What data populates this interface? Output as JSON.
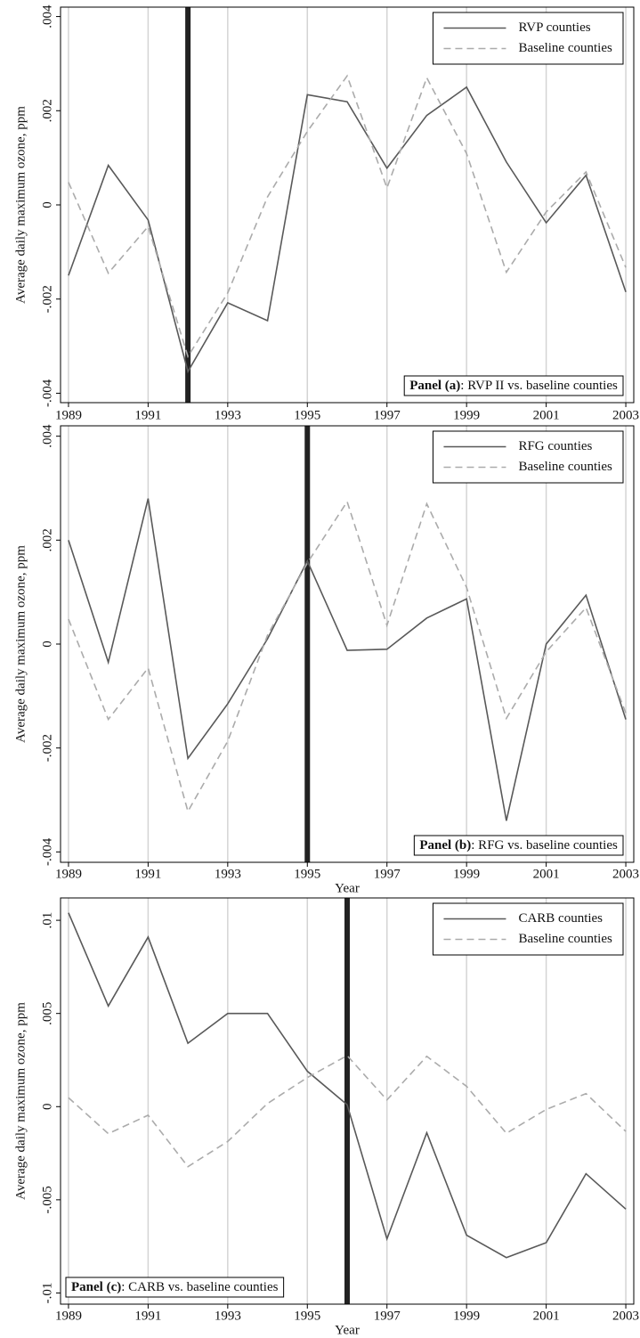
{
  "chart_data": [
    {
      "type": "line",
      "x_label": "Year",
      "y_label": "Average daily maximum ozone, ppm",
      "x": [
        1989,
        1990,
        1991,
        1992,
        1993,
        1994,
        1995,
        1996,
        1997,
        1998,
        1999,
        2000,
        2001,
        2002,
        2003
      ],
      "xlim": [
        1988.8,
        2003.2
      ],
      "xticks": [
        1989,
        1991,
        1993,
        1995,
        1997,
        1999,
        2001,
        2003
      ],
      "ylim": [
        -0.0042,
        0.0042
      ],
      "yticks": [
        {
          "value": -0.004,
          "label": "-.004"
        },
        {
          "value": -0.002,
          "label": "-.002"
        },
        0,
        {
          "value": 0.002,
          "label": ".002"
        },
        {
          "value": 0.004,
          "label": ".004"
        }
      ],
      "grid": true,
      "legend": "upper right",
      "panel_corner": "lower right",
      "policy_year": 1992,
      "policy_color": "#222222",
      "panel_label": "Panel (a)",
      "panel_caption": ": RVP II vs. baseline counties",
      "series": [
        {
          "name": "RVP counties",
          "color": "#595959",
          "style": "solid",
          "values": [
            -0.0015,
            0.00084,
            -0.00032,
            -0.00354,
            -0.00208,
            -0.00246,
            0.00234,
            0.00219,
            0.00078,
            0.0019,
            0.0025,
            0.00091,
            -0.00038,
            0.00063,
            -0.00185
          ]
        },
        {
          "name": "Baseline counties",
          "color": "#ababab",
          "style": "dashed",
          "values": [
            0.00048,
            -0.00145,
            -0.00046,
            -0.00322,
            -0.00187,
            0.00017,
            0.00156,
            0.00274,
            0.00036,
            0.0027,
            0.00109,
            -0.00143,
            -0.00015,
            0.0007,
            -0.00133
          ]
        }
      ]
    },
    {
      "type": "line",
      "x_label": "Year",
      "y_label": "Average daily maximum ozone, ppm",
      "x": [
        1989,
        1990,
        1991,
        1992,
        1993,
        1994,
        1995,
        1996,
        1997,
        1998,
        1999,
        2000,
        2001,
        2002,
        2003
      ],
      "xlim": [
        1988.8,
        2003.2
      ],
      "xticks": [
        1989,
        1991,
        1993,
        1995,
        1997,
        1999,
        2001,
        2003
      ],
      "ylim": [
        -0.0042,
        0.0042
      ],
      "yticks": [
        {
          "value": -0.004,
          "label": "-.004"
        },
        {
          "value": -0.002,
          "label": "-.002"
        },
        0,
        {
          "value": 0.002,
          "label": ".002"
        },
        {
          "value": 0.004,
          "label": ".004"
        }
      ],
      "grid": true,
      "legend": "upper right",
      "panel_corner": "lower right",
      "policy_year": 1995,
      "policy_color": "#222222",
      "panel_label": "Panel (b)",
      "panel_caption": ": RFG vs. baseline counties",
      "series": [
        {
          "name": "RFG counties",
          "color": "#595959",
          "style": "solid",
          "values": [
            0.002,
            -0.00035,
            0.0028,
            -0.0022,
            -0.00115,
            0.0001,
            0.0016,
            -0.00012,
            -0.0001,
            0.0005,
            0.00087,
            -0.0034,
            0.0,
            0.00094,
            -0.00145
          ]
        },
        {
          "name": "Baseline counties",
          "color": "#ababab",
          "style": "dashed",
          "values": [
            0.00048,
            -0.00145,
            -0.00046,
            -0.00322,
            -0.00187,
            0.00017,
            0.00156,
            0.00274,
            0.00036,
            0.0027,
            0.00109,
            -0.00143,
            -0.00015,
            0.0007,
            -0.00133
          ]
        }
      ]
    },
    {
      "type": "line",
      "x_label": "Year",
      "y_label": "Average daily maximum ozone, ppm",
      "x": [
        1989,
        1990,
        1991,
        1992,
        1993,
        1994,
        1995,
        1996,
        1997,
        1998,
        1999,
        2000,
        2001,
        2002,
        2003
      ],
      "xlim": [
        1988.8,
        2003.2
      ],
      "xticks": [
        1989,
        1991,
        1993,
        1995,
        1997,
        1999,
        2001,
        2003
      ],
      "ylim": [
        -0.0106,
        0.0112
      ],
      "yticks": [
        {
          "value": -0.01,
          "label": "-.01"
        },
        {
          "value": -0.005,
          "label": "-.005"
        },
        0,
        {
          "value": 0.005,
          "label": ".005"
        },
        {
          "value": 0.01,
          "label": ".01"
        }
      ],
      "grid": true,
      "legend": "upper right",
      "panel_corner": "lower left",
      "policy_year": 1996,
      "policy_color": "#222222",
      "panel_label": "Panel (c)",
      "panel_caption": ": CARB vs. baseline counties",
      "series": [
        {
          "name": "CARB counties",
          "color": "#595959",
          "style": "solid",
          "values": [
            0.0104,
            0.0054,
            0.0091,
            0.0034,
            0.005,
            0.005,
            0.0019,
            0.0001,
            -0.0071,
            -0.0014,
            -0.0069,
            -0.0081,
            -0.0073,
            -0.0036,
            -0.0055
          ]
        },
        {
          "name": "Baseline counties",
          "color": "#ababab",
          "style": "dashed",
          "values": [
            0.00048,
            -0.00145,
            -0.00046,
            -0.00322,
            -0.00187,
            0.00017,
            0.00156,
            0.00274,
            0.00036,
            0.0027,
            0.00109,
            -0.00143,
            -0.00015,
            0.0007,
            -0.00133
          ]
        }
      ]
    }
  ]
}
